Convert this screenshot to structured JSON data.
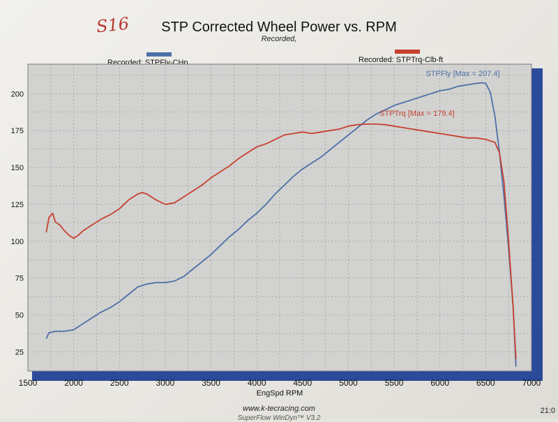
{
  "page": {
    "handwritten_note": "S16",
    "title": "STP Corrected Wheel Power vs. RPM",
    "subtitle": "Recorded,",
    "footer_url": "www.k-tecracing.com",
    "footer_app": "SuperFlow WinDyn™ V3.2",
    "footer_time": "21:0"
  },
  "colors": {
    "power": "#4d6fa8",
    "torque": "#c7402f",
    "plot_bg": "#d2d2d0",
    "grid": "#8f8f8f",
    "shadow": "#2c4a9a"
  },
  "chart_data": {
    "type": "line",
    "title": "STP Corrected Wheel Power vs. RPM",
    "subtitle": "Recorded,",
    "xlabel": "EngSpd RPM",
    "ylabel": "",
    "xlim": [
      1500,
      7000
    ],
    "ylim": [
      12,
      220
    ],
    "x_ticks": [
      1500,
      2000,
      2500,
      3000,
      3500,
      4000,
      4500,
      5000,
      5500,
      6000,
      6500,
      7000
    ],
    "y_ticks": [
      25,
      50,
      75,
      100,
      125,
      150,
      175,
      200
    ],
    "grid": true,
    "legend_placement": "top",
    "series": [
      {
        "name": "Recorded: STPFly-CHp",
        "label": "STPFly [Max = 207.4]",
        "x": [
          1700,
          1730,
          1800,
          1900,
          2000,
          2100,
          2200,
          2300,
          2400,
          2500,
          2600,
          2700,
          2800,
          2900,
          3000,
          3100,
          3200,
          3300,
          3400,
          3500,
          3600,
          3700,
          3800,
          3900,
          4000,
          4100,
          4200,
          4300,
          4400,
          4500,
          4600,
          4700,
          4800,
          4900,
          5000,
          5100,
          5200,
          5300,
          5400,
          5500,
          5600,
          5700,
          5800,
          5900,
          6000,
          6100,
          6200,
          6300,
          6400,
          6450,
          6500,
          6550,
          6600,
          6650,
          6700,
          6750,
          6800,
          6830
        ],
        "y": [
          34,
          38,
          39,
          39,
          40,
          44,
          48,
          52,
          55,
          59,
          64,
          69,
          71,
          72,
          72,
          73,
          76,
          81,
          86,
          91,
          97,
          103,
          108,
          114,
          119,
          125,
          132,
          138,
          144,
          149,
          153,
          157,
          162,
          167,
          172,
          177,
          182,
          186,
          189,
          192,
          194,
          196,
          198,
          200,
          202,
          203,
          205,
          206,
          207,
          207.4,
          207,
          201,
          185,
          160,
          130,
          95,
          55,
          15
        ]
      },
      {
        "name": "Recorded: STPTrq-Clb-ft",
        "label": "STPTrq [Max = 179.4]",
        "x": [
          1700,
          1730,
          1770,
          1800,
          1850,
          1900,
          1950,
          2000,
          2050,
          2100,
          2200,
          2300,
          2400,
          2500,
          2600,
          2700,
          2750,
          2800,
          2900,
          3000,
          3100,
          3200,
          3300,
          3400,
          3500,
          3600,
          3700,
          3800,
          3900,
          4000,
          4100,
          4200,
          4300,
          4400,
          4500,
          4600,
          4700,
          4800,
          4900,
          5000,
          5100,
          5200,
          5300,
          5400,
          5500,
          5600,
          5700,
          5800,
          5900,
          6000,
          6100,
          6200,
          6300,
          6400,
          6500,
          6600,
          6650,
          6700,
          6750,
          6800,
          6830
        ],
        "y": [
          106,
          116,
          119,
          113,
          111,
          107,
          104,
          102,
          104,
          107,
          111,
          115,
          118,
          122,
          128,
          132,
          133,
          132,
          128,
          125,
          126,
          130,
          134,
          138,
          143,
          147,
          151,
          156,
          160,
          164,
          166,
          169,
          172,
          173,
          174,
          173,
          174,
          175,
          176,
          178,
          179,
          179.4,
          179.4,
          179,
          178,
          177,
          176,
          175,
          174,
          173,
          172,
          171,
          170,
          170,
          169,
          167,
          160,
          140,
          100,
          55,
          20
        ]
      }
    ]
  }
}
